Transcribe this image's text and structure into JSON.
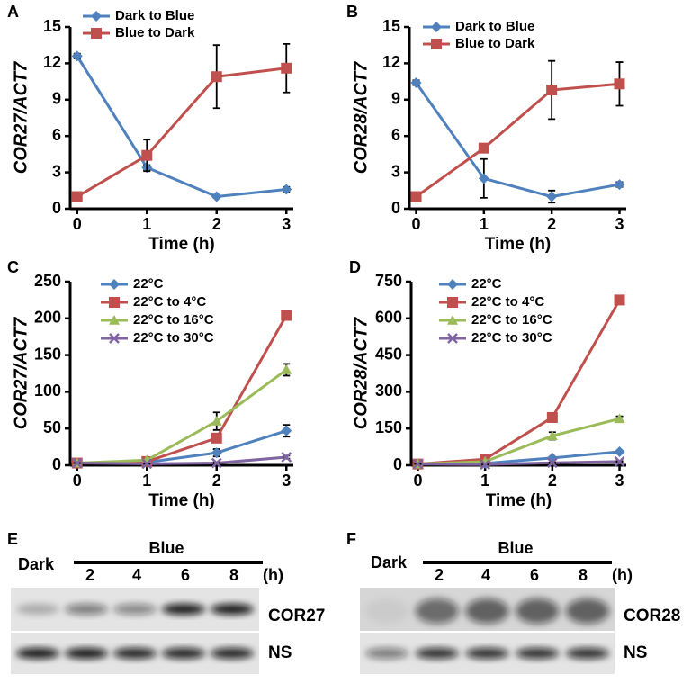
{
  "chart_data": [
    {
      "type": "line",
      "panel": "A",
      "x_label": "Time (h)",
      "y_label": "COR27/ACT7",
      "x": [
        0,
        1,
        2,
        3
      ],
      "xlim": [
        -0.1,
        3.1
      ],
      "xticks": [
        0,
        1,
        2,
        3
      ],
      "ylim": [
        0,
        15
      ],
      "yticks": [
        0,
        3,
        6,
        9,
        12,
        15
      ],
      "series": [
        {
          "name": "Dark to Blue",
          "color": "#4f81bd",
          "marker": "diamond",
          "values": [
            12.6,
            3.4,
            1.0,
            1.6
          ],
          "errors": [
            0.2,
            0.2,
            0.1,
            0.2
          ]
        },
        {
          "name": "Blue to Dark",
          "color": "#c0504d",
          "marker": "square",
          "values": [
            1.0,
            4.4,
            10.9,
            11.6
          ],
          "errors": [
            0.1,
            1.3,
            2.6,
            2.0
          ]
        }
      ]
    },
    {
      "type": "line",
      "panel": "B",
      "x_label": "Time (h)",
      "y_label": "COR28/ACT7",
      "x": [
        0,
        1,
        2,
        3
      ],
      "xlim": [
        -0.1,
        3.1
      ],
      "xticks": [
        0,
        1,
        2,
        3
      ],
      "ylim": [
        0,
        15
      ],
      "yticks": [
        0,
        3,
        6,
        9,
        12,
        15
      ],
      "series": [
        {
          "name": "Dark to Blue",
          "color": "#4f81bd",
          "marker": "diamond",
          "values": [
            10.4,
            2.5,
            1.0,
            2.0
          ],
          "errors": [
            0.2,
            1.6,
            0.5,
            0.2
          ]
        },
        {
          "name": "Blue to Dark",
          "color": "#c0504d",
          "marker": "square",
          "values": [
            1.0,
            5.0,
            9.8,
            10.3
          ],
          "errors": [
            0.1,
            0.3,
            2.4,
            1.8
          ]
        }
      ]
    },
    {
      "type": "line",
      "panel": "C",
      "x_label": "Time (h)",
      "y_label": "COR27/ACT7",
      "x": [
        0,
        1,
        2,
        3
      ],
      "xlim": [
        -0.1,
        3.1
      ],
      "xticks": [
        0,
        1,
        2,
        3
      ],
      "ylim": [
        0,
        250
      ],
      "yticks": [
        0,
        50,
        100,
        150,
        200,
        250
      ],
      "series": [
        {
          "name": "22°C",
          "color": "#4f81bd",
          "marker": "diamond",
          "values": [
            3,
            4,
            17,
            47
          ],
          "errors": [
            0,
            0,
            5,
            8
          ]
        },
        {
          "name": "22°C to 4°C",
          "color": "#c0504d",
          "marker": "square",
          "values": [
            3,
            5,
            37,
            204
          ],
          "errors": [
            0,
            0,
            5,
            5
          ]
        },
        {
          "name": "22°C to 16°C",
          "color": "#9bbb59",
          "marker": "triangle",
          "values": [
            3,
            7,
            60,
            130
          ],
          "errors": [
            0,
            0,
            12,
            8
          ]
        },
        {
          "name": "22°C to 30°C",
          "color": "#8064a2",
          "marker": "x",
          "values": [
            3,
            2,
            3,
            11
          ],
          "errors": [
            0,
            0,
            1,
            2
          ]
        }
      ]
    },
    {
      "type": "line",
      "panel": "D",
      "x_label": "Time (h)",
      "y_label": "COR28/ACT7",
      "x": [
        0,
        1,
        2,
        3
      ],
      "xlim": [
        -0.1,
        3.1
      ],
      "xticks": [
        0,
        1,
        2,
        3
      ],
      "ylim": [
        0,
        750
      ],
      "yticks": [
        0,
        150,
        300,
        450,
        600,
        750
      ],
      "series": [
        {
          "name": "22°C",
          "color": "#4f81bd",
          "marker": "diamond",
          "values": [
            5,
            8,
            30,
            55
          ],
          "errors": [
            0,
            0,
            5,
            5
          ]
        },
        {
          "name": "22°C to 4°C",
          "color": "#c0504d",
          "marker": "square",
          "values": [
            5,
            25,
            195,
            675
          ],
          "errors": [
            0,
            0,
            10,
            10
          ]
        },
        {
          "name": "22°C to 16°C",
          "color": "#9bbb59",
          "marker": "triangle",
          "values": [
            5,
            15,
            120,
            190
          ],
          "errors": [
            0,
            0,
            15,
            10
          ]
        },
        {
          "name": "22°C to 30°C",
          "color": "#8064a2",
          "marker": "x",
          "values": [
            5,
            3,
            10,
            15
          ],
          "errors": [
            0,
            0,
            2,
            2
          ]
        }
      ]
    }
  ],
  "blots": [
    {
      "panel": "E",
      "dark": "Dark",
      "blue": "Blue",
      "lanes": [
        "2",
        "4",
        "6",
        "8"
      ],
      "unit": "(h)",
      "rows": [
        "COR27",
        "NS"
      ]
    },
    {
      "panel": "F",
      "dark": "Dark",
      "blue": "Blue",
      "lanes": [
        "2",
        "4",
        "6",
        "8"
      ],
      "unit": "(h)",
      "rows": [
        "COR28",
        "NS"
      ]
    }
  ]
}
